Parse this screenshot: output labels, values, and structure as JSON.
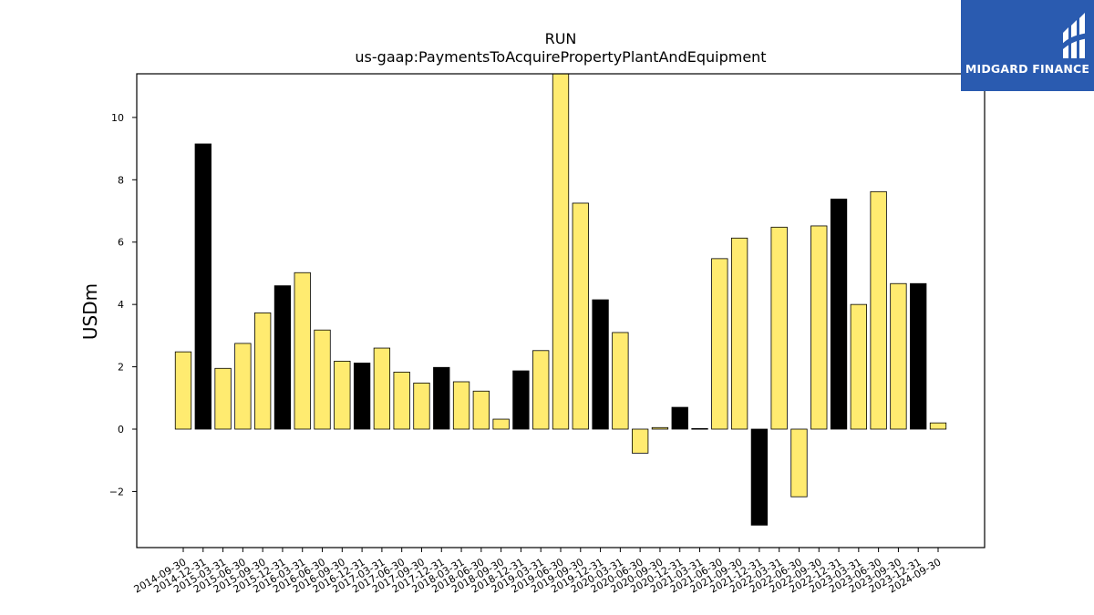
{
  "chart_data": {
    "type": "bar",
    "title": "RUN",
    "subtitle": "us-gaap:PaymentsToAcquirePropertyPlantAndEquipment",
    "xlabel": "",
    "ylabel": "USDm",
    "ylim": [
      -3.8,
      11.4
    ],
    "yticks": [
      -2,
      0,
      2,
      4,
      6,
      8,
      10
    ],
    "ytick_labels": [
      "−2",
      "0",
      "2",
      "4",
      "6",
      "8",
      "10"
    ],
    "grid": false,
    "colors": {
      "quarter": "#ffeb70",
      "year_end": "#000000",
      "edge": "#000000"
    },
    "categories": [
      "2014-09-30",
      "2014-12-31",
      "2015-03-31",
      "2015-06-30",
      "2015-09-30",
      "2015-12-31",
      "2016-03-31",
      "2016-06-30",
      "2016-09-30",
      "2016-12-31",
      "2017-03-31",
      "2017-06-30",
      "2017-09-30",
      "2017-12-31",
      "2018-03-31",
      "2018-06-30",
      "2018-09-30",
      "2018-12-31",
      "2019-03-31",
      "2019-06-30",
      "2019-09-30",
      "2019-12-31",
      "2020-03-31",
      "2020-06-30",
      "2020-09-30",
      "2020-12-31",
      "2021-03-31",
      "2021-06-30",
      "2021-09-30",
      "2021-12-31",
      "2022-03-31",
      "2022-06-30",
      "2022-09-30",
      "2022-12-31",
      "2023-03-31",
      "2023-06-30",
      "2023-09-30",
      "2023-12-31",
      "2024-09-30"
    ],
    "values": [
      2.48,
      9.15,
      1.95,
      2.75,
      3.73,
      4.6,
      5.02,
      3.18,
      2.18,
      2.12,
      2.6,
      1.83,
      1.48,
      1.98,
      1.52,
      1.22,
      0.32,
      1.87,
      2.52,
      11.4,
      7.25,
      4.15,
      3.1,
      -0.77,
      0.05,
      0.7,
      0.02,
      5.47,
      6.13,
      -3.08,
      6.48,
      -2.17,
      6.52,
      7.38,
      4.0,
      7.62,
      4.67,
      4.67,
      0.2
    ],
    "highlight": [
      false,
      true,
      false,
      false,
      false,
      true,
      false,
      false,
      false,
      true,
      false,
      false,
      false,
      true,
      false,
      false,
      false,
      true,
      false,
      false,
      false,
      true,
      false,
      false,
      false,
      true,
      false,
      false,
      false,
      true,
      false,
      false,
      false,
      true,
      false,
      false,
      false,
      true,
      false
    ]
  },
  "logo": {
    "text": "MIDGARD FINANCE",
    "icon": "midgard-logo-icon"
  }
}
